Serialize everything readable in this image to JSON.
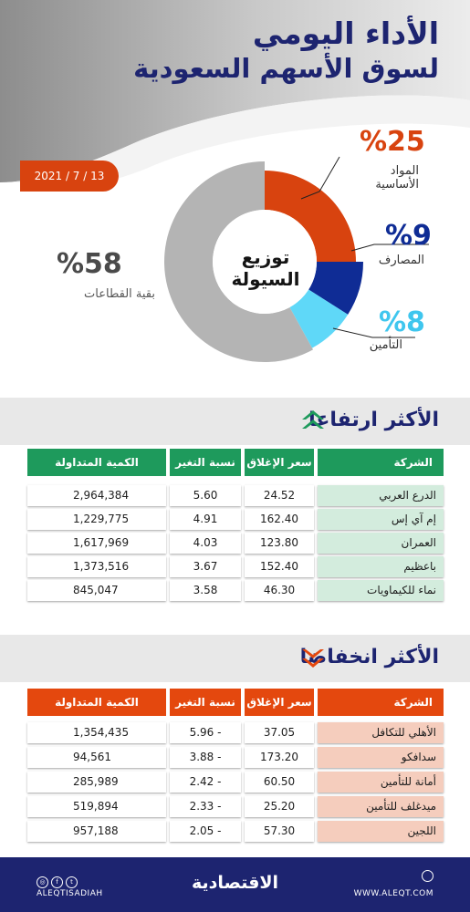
{
  "header": {
    "title": "الأداء اليومي",
    "subtitle": "لسوق الأسهم السعودية",
    "date": "2021 / 7 / 13"
  },
  "liquidity": {
    "center_line1": "توزيع",
    "center_line2": "السيولة",
    "segments": [
      {
        "pct": "%25",
        "label_line1": "المواد",
        "label_line2": "الأساسية",
        "value": 25,
        "color": "#d8430f"
      },
      {
        "pct": "%9",
        "label_line1": "المصارف",
        "label_line2": "",
        "value": 9,
        "color": "#0f2c95"
      },
      {
        "pct": "%8",
        "label_line1": "التأمين",
        "label_line2": "",
        "value": 8,
        "color": "#5fd8f8"
      },
      {
        "pct": "%58",
        "label_line1": "بقية القطاعات",
        "label_line2": "",
        "value": 58,
        "color": "#b4b4b4"
      }
    ]
  },
  "gainers": {
    "title": "الأكثر ارتفاعا",
    "color": "#1e9a5c",
    "columns": [
      "الشركة",
      "سعر الإغلاق",
      "نسبة التغير %",
      "الكمية المتداولة"
    ],
    "rows": [
      {
        "company": "الدرع العربي",
        "close": "24.52",
        "change": "5.60",
        "volume": "2,964,384"
      },
      {
        "company": "إم آي إس",
        "close": "162.40",
        "change": "4.91",
        "volume": "1,229,775"
      },
      {
        "company": "العمران",
        "close": "123.80",
        "change": "4.03",
        "volume": "1,617,969"
      },
      {
        "company": "باعظيم",
        "close": "152.40",
        "change": "3.67",
        "volume": "1,373,516"
      },
      {
        "company": "نماء للكيماويات",
        "close": "46.30",
        "change": "3.58",
        "volume": "845,047"
      }
    ]
  },
  "losers": {
    "title": "الأكثر انخفاضا",
    "color": "#e4480e",
    "columns": [
      "الشركة",
      "سعر الإغلاق",
      "نسبة التغير %",
      "الكمية المتداولة"
    ],
    "rows": [
      {
        "company": "الأهلي للتكافل",
        "close": "37.05",
        "change": "5.96 -",
        "volume": "1,354,435"
      },
      {
        "company": "سدافكو",
        "close": "173.20",
        "change": "3.88 -",
        "volume": "94,561"
      },
      {
        "company": "أمانة للتأمين",
        "close": "60.50",
        "change": "2.42 -",
        "volume": "285,989"
      },
      {
        "company": "ميدغلف للتأمين",
        "close": "25.20",
        "change": "2.33 -",
        "volume": "519,894"
      },
      {
        "company": "اللجين",
        "close": "57.30",
        "change": "2.05 -",
        "volume": "957,188"
      }
    ]
  },
  "footer": {
    "handle": "ALEQTISADIAH",
    "logo": "الاقتصادية",
    "website": "WWW.ALEQT.COM",
    "icons": [
      "instagram-icon",
      "facebook-icon",
      "twitter-icon",
      "globe-icon"
    ]
  }
}
